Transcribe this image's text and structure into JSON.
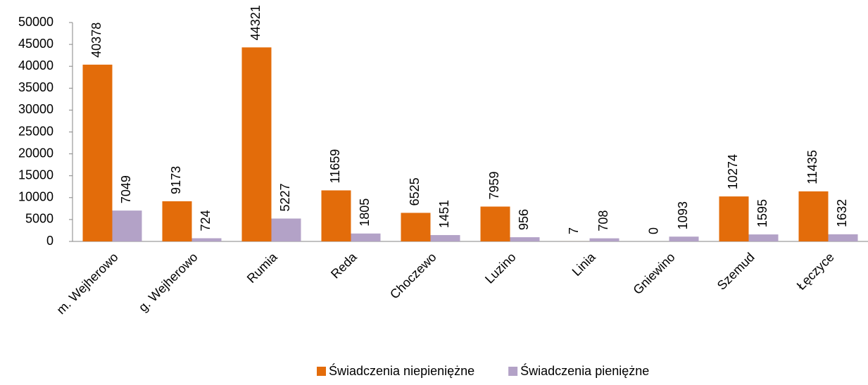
{
  "chart_data": {
    "type": "bar",
    "categories": [
      "m. Wejherowo",
      "g. Wejherowo",
      "Rumia",
      "Reda",
      "Choczewo",
      "Luzino",
      "Linia",
      "Gniewino",
      "Szemud",
      "Łęczyce"
    ],
    "series": [
      {
        "name": "Świadczenia niepieniężne",
        "color": "#e36c0a",
        "values": [
          40378,
          9173,
          44321,
          11659,
          6525,
          7959,
          7,
          0,
          10274,
          11435
        ]
      },
      {
        "name": "Świadczenia pieniężne",
        "color": "#b3a2c7",
        "values": [
          7049,
          724,
          5227,
          1805,
          1451,
          956,
          708,
          1093,
          1595,
          1632
        ]
      }
    ],
    "ylim": [
      0,
      50000
    ],
    "yticks": [
      0,
      5000,
      10000,
      15000,
      20000,
      25000,
      30000,
      35000,
      40000,
      45000,
      50000
    ],
    "grid": false,
    "legend": "bottom"
  }
}
